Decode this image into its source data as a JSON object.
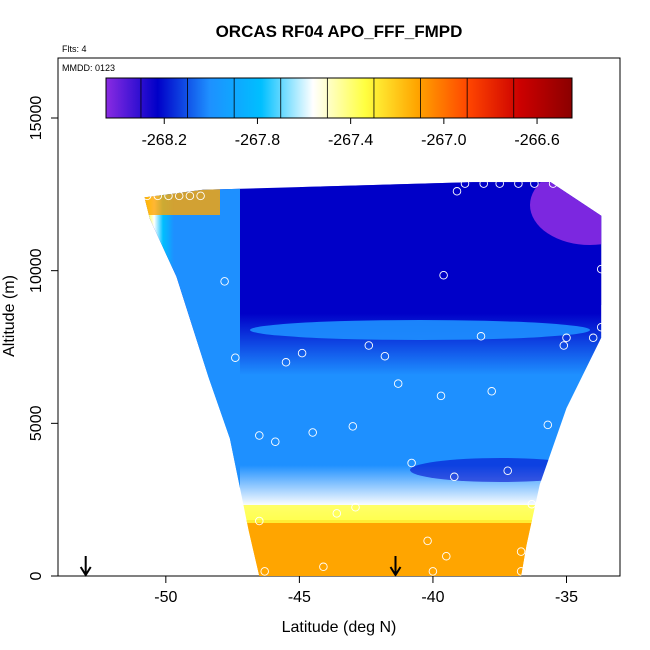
{
  "chart_data": {
    "type": "heatmap",
    "title": "ORCAS RF04 APO_FFF_FMPD",
    "subtitle": "Flts: 4",
    "annotation": "MMDD: 0123",
    "xlabel": "Latitude (deg N)",
    "ylabel": "Altitude (m)",
    "xlim": [
      -54.5,
      -33.5
    ],
    "ylim": [
      0,
      17000
    ],
    "x_ticks": [
      -50,
      -45,
      -40,
      -35
    ],
    "y_ticks": [
      0,
      5000,
      10000,
      15000
    ],
    "colorbar": {
      "range": [
        -268.45,
        -266.45
      ],
      "ticks": [
        -268.2,
        -267.8,
        -267.4,
        -267.0,
        -266.6
      ],
      "tick_labels": [
        "-268.2",
        "-267.8",
        "-267.4",
        "-267.0",
        "-266.6"
      ],
      "colors": [
        "#8a2be2",
        "#0000c8",
        "#1e90ff",
        "#00bfff",
        "#ffffff",
        "#ffff40",
        "#ffa500",
        "#ff4500",
        "#cc0000",
        "#8b0000"
      ]
    },
    "domain_outline_lat_alt": [
      [
        -50.8,
        12400
      ],
      [
        -48.6,
        12650
      ],
      [
        -38.5,
        12900
      ],
      [
        -35.6,
        12900
      ],
      [
        -33.7,
        11800
      ],
      [
        -33.7,
        7800
      ],
      [
        -35,
        5500
      ],
      [
        -36,
        3000
      ],
      [
        -36.5,
        1000
      ],
      [
        -36.7,
        0
      ],
      [
        -46.5,
        0
      ],
      [
        -46.9,
        1500
      ],
      [
        -47.6,
        4500
      ],
      [
        -48.4,
        6500
      ],
      [
        -49.6,
        9800
      ],
      [
        -50.6,
        11700
      ]
    ],
    "flight_track_points": [
      [
        -50.7,
        12450
      ],
      [
        -50.3,
        12450
      ],
      [
        -49.9,
        12450
      ],
      [
        -49.5,
        12450
      ],
      [
        -49.1,
        12450
      ],
      [
        -48.7,
        12450
      ],
      [
        -38.8,
        12850
      ],
      [
        -38.1,
        12850
      ],
      [
        -37.5,
        12850
      ],
      [
        -36.8,
        12850
      ],
      [
        -36.2,
        12850
      ],
      [
        -35.5,
        12850
      ],
      [
        -34.9,
        12850
      ],
      [
        -34.2,
        12850
      ],
      [
        -39.1,
        12600
      ],
      [
        -34.0,
        12300
      ],
      [
        -39.6,
        9850
      ],
      [
        -33.7,
        10050
      ],
      [
        -47.8,
        9650
      ],
      [
        -38.2,
        7850
      ],
      [
        -35.0,
        7800
      ],
      [
        -34.0,
        7800
      ],
      [
        -33.7,
        8150
      ],
      [
        -35.1,
        7550
      ],
      [
        -42.4,
        7550
      ],
      [
        -44.9,
        7300
      ],
      [
        -41.8,
        7200
      ],
      [
        -47.4,
        7150
      ],
      [
        -45.5,
        7000
      ],
      [
        -41.3,
        6300
      ],
      [
        -37.8,
        6050
      ],
      [
        -39.7,
        5900
      ],
      [
        -35.7,
        4950
      ],
      [
        -43.0,
        4900
      ],
      [
        -44.5,
        4700
      ],
      [
        -46.5,
        4600
      ],
      [
        -45.9,
        4400
      ],
      [
        -40.8,
        3700
      ],
      [
        -37.2,
        3450
      ],
      [
        -39.2,
        3250
      ],
      [
        -36.3,
        2350
      ],
      [
        -42.9,
        2250
      ],
      [
        -43.6,
        2050
      ],
      [
        -46.5,
        1800
      ],
      [
        -40.2,
        1150
      ],
      [
        -39.5,
        650
      ],
      [
        -36.7,
        800
      ],
      [
        -44.1,
        300
      ],
      [
        -46.3,
        150
      ],
      [
        -40.0,
        150
      ],
      [
        -36.7,
        150
      ]
    ],
    "aircraft_markers_lat": [
      -53.0,
      -41.4
    ]
  }
}
